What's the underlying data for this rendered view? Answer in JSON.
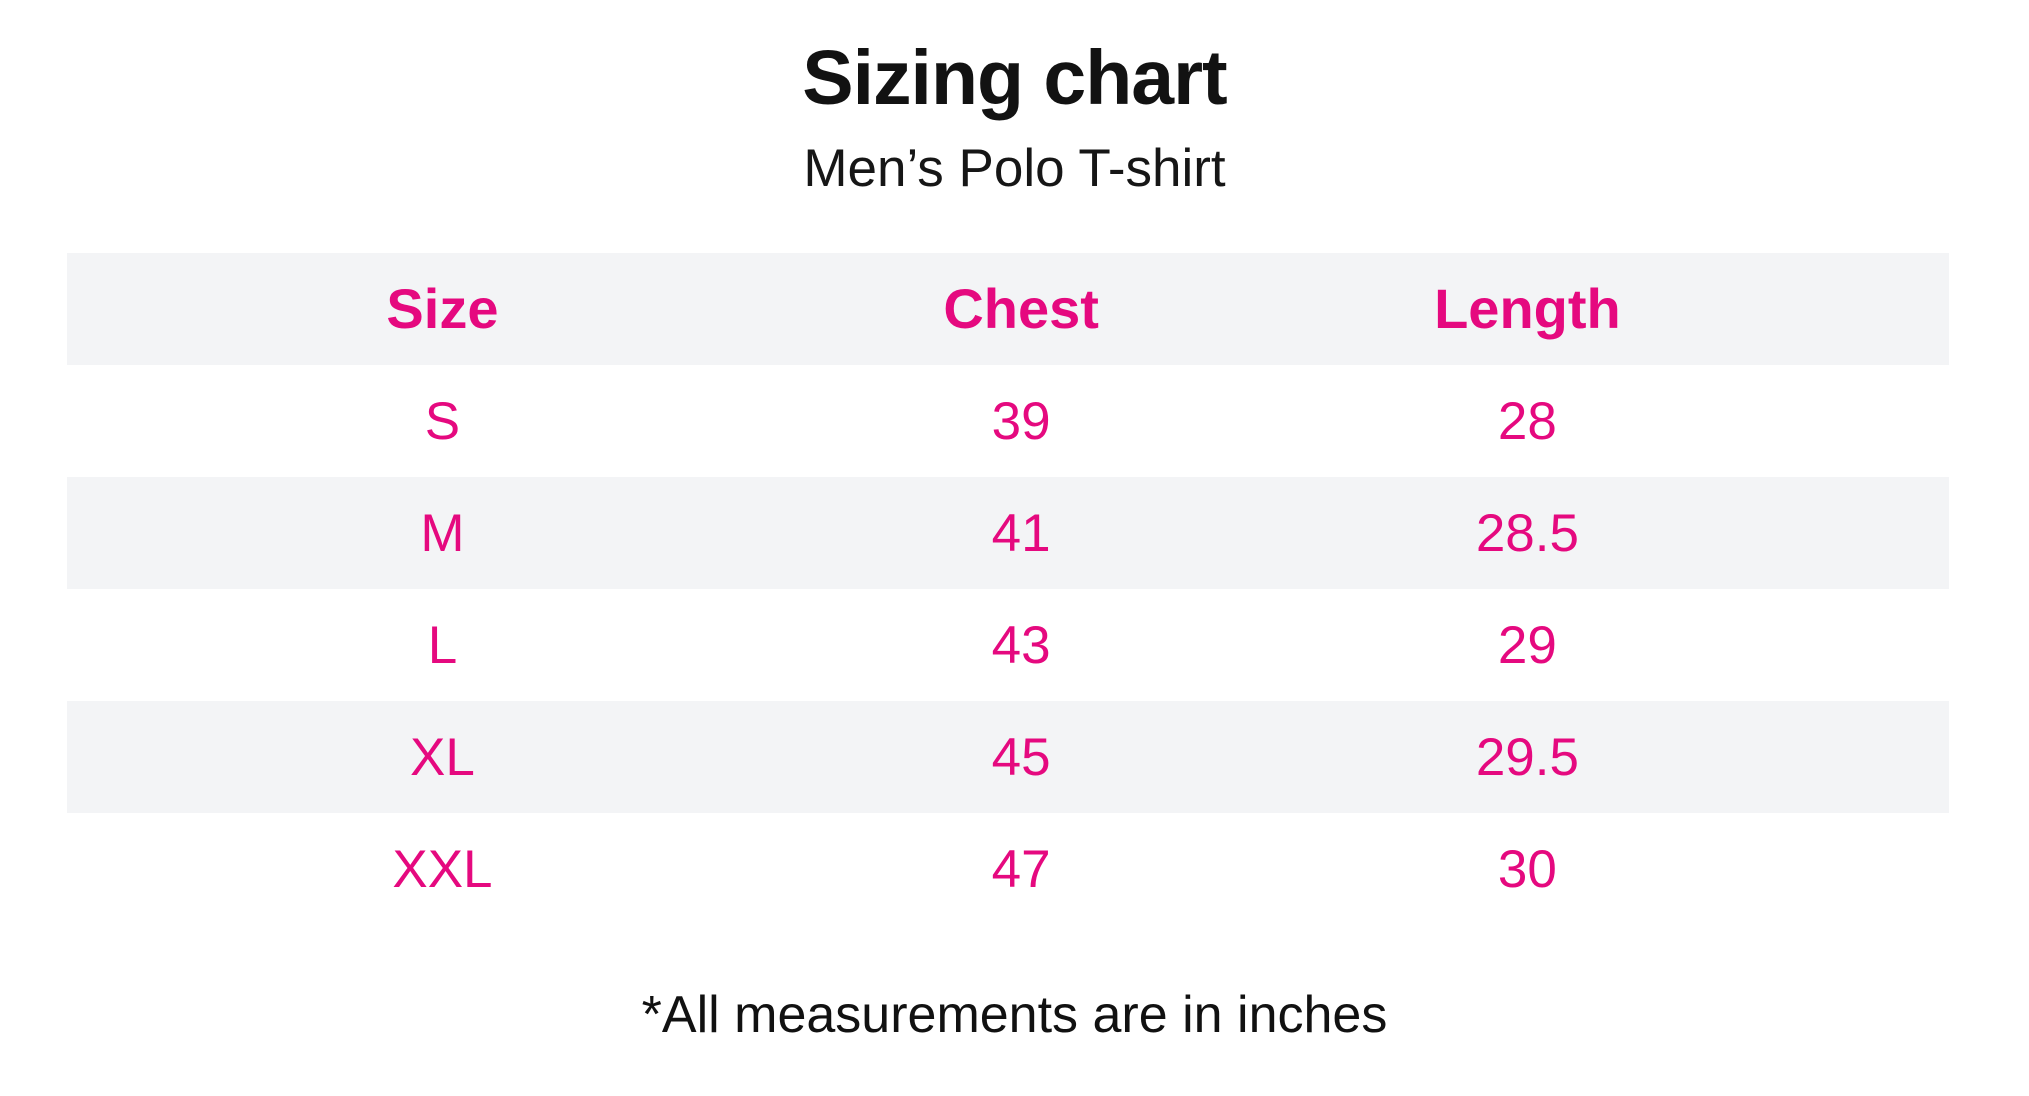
{
  "title": "Sizing chart",
  "subtitle": "Men’s Polo T-shirt",
  "footnote": "*All measurements are in inches",
  "colors": {
    "accent_pink": "#E5097F",
    "stripe_gray": "#F3F4F6",
    "text_black": "#121212"
  },
  "table": {
    "headers": {
      "size": "Size",
      "chest": "Chest",
      "length": "Length"
    },
    "rows": [
      {
        "size": "S",
        "chest": "39",
        "length": "28"
      },
      {
        "size": "M",
        "chest": "41",
        "length": "28.5"
      },
      {
        "size": "L",
        "chest": "43",
        "length": "29"
      },
      {
        "size": "XL",
        "chest": "45",
        "length": "29.5"
      },
      {
        "size": "XXL",
        "chest": "47",
        "length": "30"
      }
    ]
  },
  "chart_data": {
    "type": "table",
    "title": "Sizing chart",
    "subtitle": "Men’s Polo T-shirt",
    "columns": [
      "Size",
      "Chest",
      "Length"
    ],
    "rows": [
      [
        "S",
        39,
        28
      ],
      [
        "M",
        41,
        28.5
      ],
      [
        "L",
        43,
        29
      ],
      [
        "XL",
        45,
        29.5
      ],
      [
        "XXL",
        47,
        30
      ]
    ],
    "units": "inches",
    "footnote": "*All measurements are in inches",
    "layout": {
      "striped_rows": true,
      "header_background": "#F3F4F6",
      "value_color": "#E5097F"
    }
  }
}
